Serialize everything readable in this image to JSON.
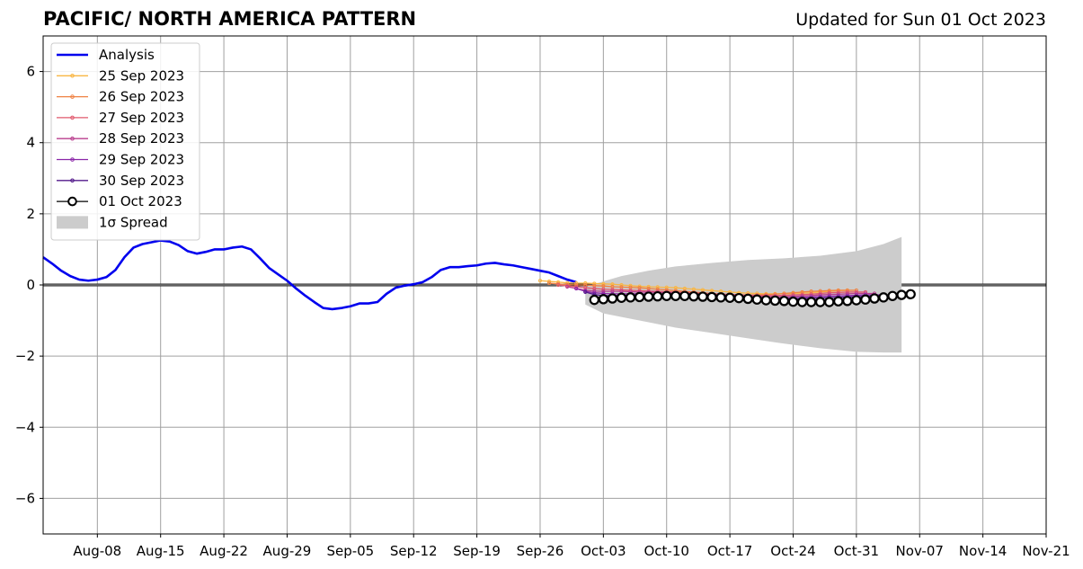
{
  "header": {
    "title": "PACIFIC/ NORTH AMERICA PATTERN",
    "subtitle": "Updated for Sun 01 Oct 2023"
  },
  "chart_data": {
    "type": "line",
    "title": "PACIFIC/ NORTH AMERICA PATTERN",
    "subtitle": "Updated for Sun 01 Oct 2023",
    "xlabel": "",
    "ylabel": "",
    "xlim": [
      "2023-08-02",
      "2023-11-21"
    ],
    "ylim": [
      -7,
      7
    ],
    "x_ticks": [
      "Aug-08",
      "Aug-15",
      "Aug-22",
      "Aug-29",
      "Sep-05",
      "Sep-12",
      "Sep-19",
      "Sep-26",
      "Oct-03",
      "Oct-10",
      "Oct-17",
      "Oct-24",
      "Oct-31",
      "Nov-07",
      "Nov-14",
      "Nov-21"
    ],
    "x_tick_dates": [
      "2023-08-08",
      "2023-08-15",
      "2023-08-22",
      "2023-08-29",
      "2023-09-05",
      "2023-09-12",
      "2023-09-19",
      "2023-09-26",
      "2023-10-03",
      "2023-10-10",
      "2023-10-17",
      "2023-10-24",
      "2023-10-31",
      "2023-11-07",
      "2023-11-14",
      "2023-11-21"
    ],
    "y_ticks": [
      6,
      4,
      2,
      0,
      -2,
      -4,
      -6
    ],
    "y_tick_labels": [
      "6",
      "4",
      "2",
      "0",
      "−2",
      "−4",
      "−6"
    ],
    "grid": true,
    "zero_line": true,
    "legend_position": "top-left",
    "analysis": {
      "name": "Analysis",
      "color": "#0000ee",
      "start": "2023-08-02",
      "values": [
        0.78,
        0.6,
        0.4,
        0.25,
        0.15,
        0.12,
        0.15,
        0.22,
        0.42,
        0.78,
        1.05,
        1.15,
        1.2,
        1.25,
        1.22,
        1.12,
        0.95,
        0.88,
        0.93,
        1.0,
        1.0,
        1.05,
        1.08,
        1.0,
        0.75,
        0.48,
        0.3,
        0.12,
        -0.1,
        -0.3,
        -0.48,
        -0.65,
        -0.68,
        -0.65,
        -0.6,
        -0.52,
        -0.52,
        -0.48,
        -0.25,
        -0.08,
        -0.02,
        0.02,
        0.08,
        0.22,
        0.42,
        0.5,
        0.5,
        0.53,
        0.55,
        0.6,
        0.62,
        0.58,
        0.55,
        0.5,
        0.45,
        0.4,
        0.35,
        0.25,
        0.15,
        0.08
      ]
    },
    "forecasts": [
      {
        "name": "25 Sep 2023",
        "color": "#f9b644",
        "start": "2023-09-26",
        "values": [
          0.12,
          0.1,
          0.08,
          0.06,
          0.05,
          0.05,
          0.04,
          0.03,
          0.02,
          0.0,
          -0.02,
          -0.04,
          -0.05,
          -0.06,
          -0.07,
          -0.08,
          -0.1,
          -0.12,
          -0.14,
          -0.16,
          -0.18,
          -0.2,
          -0.22,
          -0.23,
          -0.24,
          -0.25,
          -0.25,
          -0.25,
          -0.24,
          -0.23,
          -0.22,
          -0.2,
          -0.18,
          -0.16,
          -0.15
        ]
      },
      {
        "name": "26 Sep 2023",
        "color": "#ef8143",
        "start": "2023-09-27",
        "values": [
          0.05,
          0.03,
          0.01,
          0.0,
          0.0,
          -0.02,
          -0.03,
          -0.05,
          -0.06,
          -0.07,
          -0.08,
          -0.1,
          -0.12,
          -0.14,
          -0.16,
          -0.18,
          -0.2,
          -0.22,
          -0.24,
          -0.26,
          -0.27,
          -0.28,
          -0.28,
          -0.28,
          -0.27,
          -0.26,
          -0.24,
          -0.22,
          -0.2,
          -0.18,
          -0.17,
          -0.16,
          -0.15,
          -0.15,
          -0.15
        ]
      },
      {
        "name": "27 Sep 2023",
        "color": "#e1586c",
        "start": "2023-09-28",
        "values": [
          0.0,
          -0.03,
          -0.05,
          -0.08,
          -0.1,
          -0.12,
          -0.13,
          -0.14,
          -0.15,
          -0.16,
          -0.17,
          -0.18,
          -0.19,
          -0.2,
          -0.21,
          -0.22,
          -0.24,
          -0.25,
          -0.26,
          -0.27,
          -0.28,
          -0.29,
          -0.3,
          -0.3,
          -0.3,
          -0.29,
          -0.28,
          -0.27,
          -0.26,
          -0.24,
          -0.22,
          -0.21,
          -0.2,
          -0.2,
          -0.2
        ]
      },
      {
        "name": "28 Sep 2023",
        "color": "#b93e8e",
        "start": "2023-09-29",
        "values": [
          -0.05,
          -0.1,
          -0.15,
          -0.17,
          -0.18,
          -0.18,
          -0.18,
          -0.19,
          -0.2,
          -0.2,
          -0.21,
          -0.22,
          -0.23,
          -0.24,
          -0.25,
          -0.26,
          -0.27,
          -0.28,
          -0.29,
          -0.3,
          -0.31,
          -0.32,
          -0.33,
          -0.33,
          -0.33,
          -0.32,
          -0.31,
          -0.3,
          -0.28,
          -0.27,
          -0.26,
          -0.25,
          -0.24,
          -0.24,
          -0.24
        ]
      },
      {
        "name": "29 Sep 2023",
        "color": "#8a25a8",
        "start": "2023-09-30",
        "values": [
          -0.1,
          -0.18,
          -0.22,
          -0.24,
          -0.25,
          -0.25,
          -0.25,
          -0.25,
          -0.26,
          -0.26,
          -0.27,
          -0.28,
          -0.28,
          -0.29,
          -0.3,
          -0.31,
          -0.32,
          -0.33,
          -0.34,
          -0.35,
          -0.36,
          -0.37,
          -0.37,
          -0.37,
          -0.36,
          -0.35,
          -0.34,
          -0.33,
          -0.32,
          -0.31,
          -0.3,
          -0.29,
          -0.28,
          -0.28,
          -0.28
        ]
      },
      {
        "name": "30 Sep 2023",
        "color": "#531a8b",
        "start": "2023-10-01",
        "values": [
          -0.2,
          -0.27,
          -0.3,
          -0.3,
          -0.3,
          -0.3,
          -0.3,
          -0.3,
          -0.3,
          -0.3,
          -0.31,
          -0.32,
          -0.33,
          -0.33,
          -0.34,
          -0.35,
          -0.36,
          -0.37,
          -0.38,
          -0.39,
          -0.4,
          -0.4,
          -0.4,
          -0.4,
          -0.39,
          -0.38,
          -0.37,
          -0.36,
          -0.35,
          -0.34,
          -0.33,
          -0.32,
          -0.31,
          -0.3,
          -0.3
        ]
      }
    ],
    "current_forecast": {
      "name": "01 Oct 2023",
      "color": "#000000",
      "marker": "open-circle",
      "start": "2023-10-02",
      "values": [
        -0.42,
        -0.4,
        -0.38,
        -0.36,
        -0.35,
        -0.34,
        -0.33,
        -0.32,
        -0.31,
        -0.31,
        -0.31,
        -0.32,
        -0.33,
        -0.34,
        -0.35,
        -0.36,
        -0.37,
        -0.39,
        -0.41,
        -0.43,
        -0.44,
        -0.45,
        -0.47,
        -0.48,
        -0.48,
        -0.48,
        -0.48,
        -0.46,
        -0.45,
        -0.43,
        -0.41,
        -0.38,
        -0.35,
        -0.31,
        -0.28,
        -0.26
      ]
    },
    "spread": {
      "name": "1σ Spread",
      "color": "#cccccc",
      "x": [
        "2023-10-01",
        "2023-10-03",
        "2023-10-05",
        "2023-10-08",
        "2023-10-11",
        "2023-10-15",
        "2023-10-19",
        "2023-10-23",
        "2023-10-27",
        "2023-10-31",
        "2023-11-03",
        "2023-11-05"
      ],
      "upper": [
        -0.05,
        0.1,
        0.25,
        0.4,
        0.52,
        0.62,
        0.7,
        0.75,
        0.82,
        0.95,
        1.15,
        1.35
      ],
      "lower": [
        -0.55,
        -0.8,
        -0.9,
        -1.05,
        -1.2,
        -1.35,
        -1.5,
        -1.65,
        -1.78,
        -1.88,
        -1.9,
        -1.9
      ]
    }
  }
}
